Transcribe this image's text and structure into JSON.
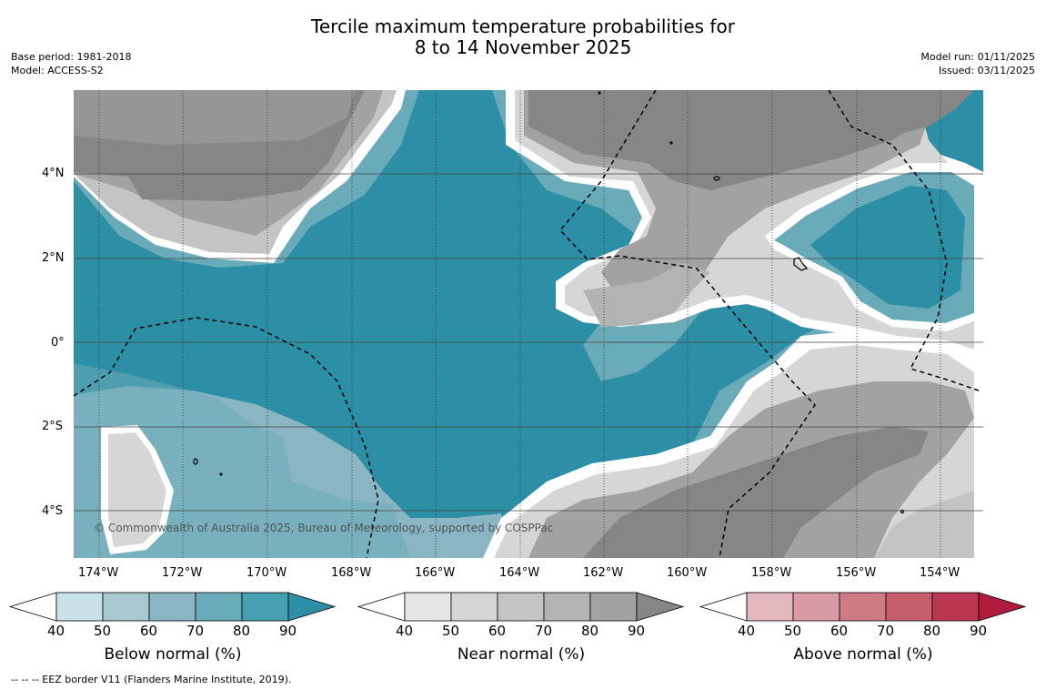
{
  "title": {
    "line1": "Tercile maximum temperature probabilities for",
    "line2": "8 to 14 November 2025"
  },
  "meta_left": {
    "base_period": "Base period: 1981-2018",
    "model": "Model: ACCESS-S2"
  },
  "meta_right": {
    "model_run": "Model run: 01/11/2025",
    "issued": "Issued: 03/11/2025"
  },
  "map": {
    "lat_labels": [
      "4°N",
      "2°N",
      "0°",
      "2°S",
      "4°S"
    ],
    "lon_labels": [
      "174°W",
      "172°W",
      "170°W",
      "168°W",
      "166°W",
      "164°W",
      "162°W",
      "160°W",
      "158°W",
      "156°W",
      "154°W"
    ],
    "copyright": "© Commonwealth of Australia 2025, Bureau of Meteorology, supported by COSPPac"
  },
  "colorbars": [
    {
      "label": "Below normal (%)",
      "ticks": [
        "40",
        "50",
        "60",
        "70",
        "80",
        "90"
      ],
      "colors": [
        "#ffffff",
        "#c9e2e8",
        "#a8c8cf",
        "#8ab5c3",
        "#6aabba",
        "#47a0b1",
        "#2d8fa5"
      ]
    },
    {
      "label": "Near normal (%)",
      "ticks": [
        "40",
        "50",
        "60",
        "70",
        "80",
        "90"
      ],
      "colors": [
        "#ffffff",
        "#e6e6e6",
        "#d6d6d6",
        "#c4c4c4",
        "#b3b3b3",
        "#a2a2a2",
        "#868686"
      ]
    },
    {
      "label": "Above normal (%)",
      "ticks": [
        "40",
        "50",
        "60",
        "70",
        "80",
        "90"
      ],
      "colors": [
        "#ffffff",
        "#e3b8bf",
        "#d99aa3",
        "#cf7b86",
        "#c55d6c",
        "#bb3651",
        "#b01c3b"
      ]
    }
  ],
  "footnote": "--  --  -- EEZ border V11 (Flanders Marine Institute, 2019)."
}
